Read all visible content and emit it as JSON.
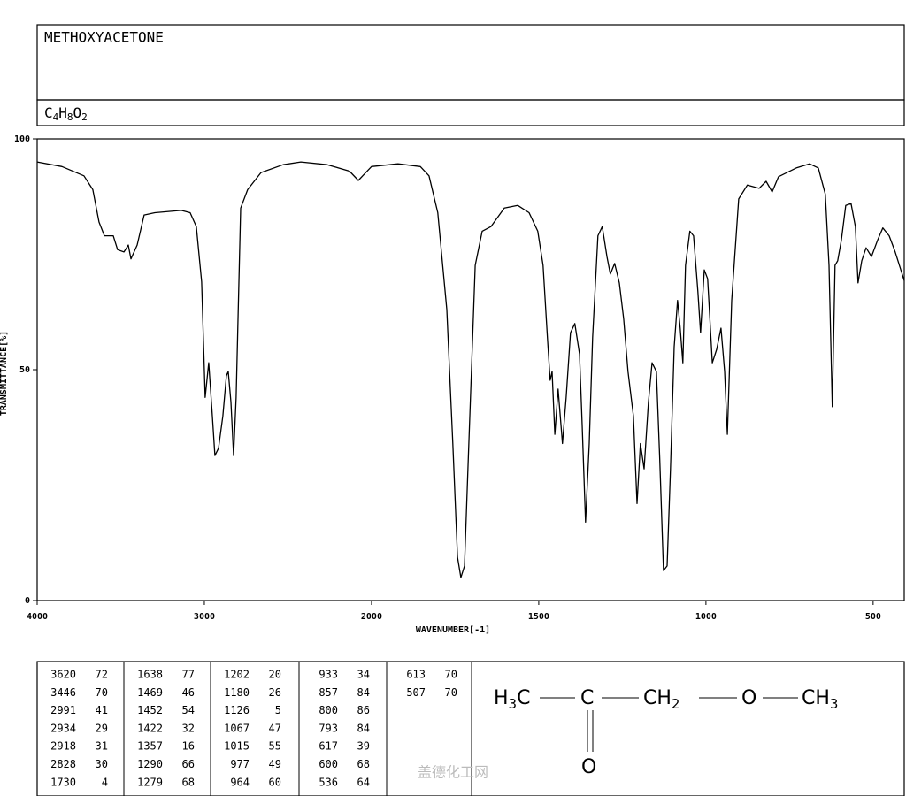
{
  "chart_data": {
    "type": "line",
    "title": "METHOXYACETONE",
    "formula": [
      "C",
      "4",
      "H",
      "8",
      "O",
      "2"
    ],
    "xlabel": "WAVENUMBER[-1]",
    "ylabel": "TRANSMITTANCE[%]",
    "xlim": [
      4000,
      407
    ],
    "xticks": [
      4000,
      3000,
      2000,
      1500,
      1000,
      500
    ],
    "xscale": "tick-spaced",
    "ylim": [
      0,
      100
    ],
    "yticks": [
      100,
      50,
      0
    ],
    "color": "#000000",
    "series": [
      {
        "name": "METHOXYACETONE",
        "color": "#000000",
        "x": [
          4000,
          3852,
          3720,
          3667,
          3630,
          3598,
          3545,
          3519,
          3481,
          3455,
          3439,
          3402,
          3360,
          3296,
          3138,
          3085,
          3048,
          3016,
          2995,
          2974,
          2952,
          2937,
          2915,
          2889,
          2868,
          2857,
          2841,
          2825,
          2810,
          2783,
          2741,
          2661,
          2529,
          2423,
          2265,
          2132,
          2079,
          2053,
          2000,
          1921,
          1854,
          1828,
          1802,
          1775,
          1757,
          1743,
          1733,
          1722,
          1709,
          1690,
          1669,
          1643,
          1603,
          1563,
          1529,
          1503,
          1487,
          1474,
          1466,
          1460,
          1452,
          1442,
          1429,
          1418,
          1405,
          1392,
          1378,
          1370,
          1360,
          1349,
          1339,
          1323,
          1310,
          1296,
          1286,
          1273,
          1259,
          1246,
          1233,
          1217,
          1206,
          1196,
          1185,
          1172,
          1161,
          1148,
          1138,
          1127,
          1116,
          1106,
          1095,
          1085,
          1077,
          1069,
          1061,
          1048,
          1037,
          1024,
          1016,
          1005,
          995,
          981,
          968,
          955,
          944,
          936,
          923,
          902,
          876,
          841,
          820,
          802,
          783,
          730,
          690,
          664,
          643,
          632,
          622,
          614,
          606,
          595,
          582,
          566,
          553,
          545,
          534,
          521,
          505,
          487,
          471,
          452,
          434,
          407
        ],
        "values": [
          95,
          94,
          92,
          89,
          82,
          79,
          79,
          76,
          75.5,
          77,
          74,
          77,
          83.5,
          84,
          84.5,
          84,
          81,
          69,
          44,
          51.5,
          40,
          31.4,
          33,
          40,
          48.7,
          49.6,
          43,
          31.4,
          44,
          85,
          89,
          92.7,
          94.4,
          95,
          94.4,
          93,
          91,
          92,
          94,
          94.6,
          94,
          92,
          84,
          63,
          34,
          9.4,
          5,
          7.5,
          34,
          72.6,
          80,
          81,
          85,
          85.6,
          84,
          80,
          72.6,
          57,
          47.7,
          49.6,
          36,
          45.8,
          34,
          44,
          58,
          60,
          53.4,
          38,
          17,
          34,
          57,
          79,
          81,
          74.5,
          70.7,
          73,
          68.8,
          61,
          49.6,
          40,
          21,
          34,
          28.5,
          43,
          51.5,
          49.6,
          30.5,
          6.5,
          7.5,
          28.5,
          55,
          65,
          59,
          51.5,
          72.6,
          80,
          79,
          66.9,
          58,
          71.6,
          69.7,
          51.5,
          54.4,
          59,
          49.6,
          36,
          65,
          87,
          90,
          89.3,
          90.8,
          88.5,
          91.8,
          93.7,
          94.6,
          93.7,
          88,
          72.6,
          42,
          72.6,
          73.6,
          78,
          85.6,
          86,
          81,
          68.8,
          73.6,
          76.4,
          74.5,
          78,
          80.7,
          79,
          75.5,
          69.3
        ]
      }
    ]
  },
  "peak_table": [
    [
      [
        3620,
        72
      ],
      [
        3446,
        70
      ],
      [
        2991,
        41
      ],
      [
        2934,
        29
      ],
      [
        2918,
        31
      ],
      [
        2828,
        30
      ],
      [
        1730,
        4
      ]
    ],
    [
      [
        1638,
        77
      ],
      [
        1469,
        46
      ],
      [
        1452,
        54
      ],
      [
        1422,
        32
      ],
      [
        1357,
        16
      ],
      [
        1290,
        66
      ],
      [
        1279,
        68
      ]
    ],
    [
      [
        1202,
        20
      ],
      [
        1180,
        26
      ],
      [
        1126,
        5
      ],
      [
        1067,
        47
      ],
      [
        1015,
        55
      ],
      [
        977,
        49
      ],
      [
        964,
        60
      ]
    ],
    [
      [
        933,
        34
      ],
      [
        857,
        84
      ],
      [
        800,
        86
      ],
      [
        793,
        84
      ],
      [
        617,
        39
      ],
      [
        600,
        68
      ],
      [
        536,
        64
      ]
    ],
    [
      [
        613,
        70
      ],
      [
        507,
        70
      ]
    ]
  ],
  "structure": [
    "H",
    "3",
    "C",
    "C",
    "CH",
    "2",
    "O",
    "CH",
    "3",
    "O"
  ],
  "watermark": "盖德化工网"
}
